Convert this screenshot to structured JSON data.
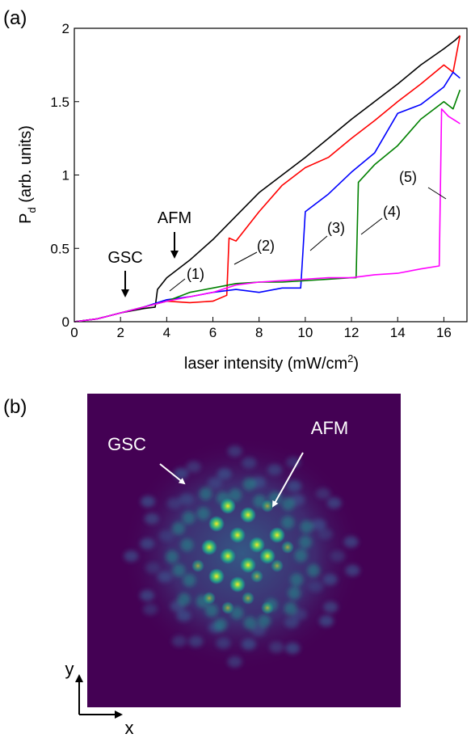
{
  "panel_a": {
    "label": "(a)",
    "annotations": {
      "gsc": "GSC",
      "afm": "AFM",
      "c1": "(1)",
      "c2": "(2)",
      "c3": "(3)",
      "c4": "(4)",
      "c5": "(5)"
    }
  },
  "panel_b": {
    "label": "(b)",
    "gsc": "GSC",
    "afm": "AFM",
    "axis_x": "x",
    "axis_y": "y",
    "colors": {
      "background": "#440154",
      "spot": "#fde725"
    }
  },
  "chart_data": {
    "type": "line",
    "xlabel": "laser intensity (mW/cm²)",
    "ylabel_main": "P",
    "ylabel_sub": "d",
    "ylabel_rest": " (arb. units)",
    "xlim": [
      0,
      17
    ],
    "ylim": [
      0,
      2
    ],
    "xticks": [
      0,
      2,
      4,
      6,
      8,
      10,
      12,
      14,
      16
    ],
    "yticks": [
      0,
      0.5,
      1,
      1.5,
      2
    ],
    "ytick_labels": [
      "0",
      "0.5",
      "1",
      "1.5",
      "2"
    ],
    "grid": false,
    "series": [
      {
        "color": "#000000",
        "points": [
          [
            0,
            0
          ],
          [
            1,
            0.02
          ],
          [
            2,
            0.06
          ],
          [
            3,
            0.09
          ],
          [
            3.5,
            0.1
          ],
          [
            3.6,
            0.22
          ],
          [
            4,
            0.3
          ],
          [
            5,
            0.42
          ],
          [
            6,
            0.56
          ],
          [
            7,
            0.72
          ],
          [
            8,
            0.88
          ],
          [
            9,
            1.0
          ],
          [
            10,
            1.12
          ],
          [
            11,
            1.25
          ],
          [
            12,
            1.38
          ],
          [
            13,
            1.5
          ],
          [
            14,
            1.62
          ],
          [
            15,
            1.75
          ],
          [
            16,
            1.86
          ],
          [
            16.5,
            1.92
          ],
          [
            16.7,
            1.95
          ]
        ]
      },
      {
        "color": "#ff0000",
        "points": [
          [
            0,
            0
          ],
          [
            1,
            0.02
          ],
          [
            2,
            0.06
          ],
          [
            3,
            0.1
          ],
          [
            4,
            0.14
          ],
          [
            5,
            0.13
          ],
          [
            6,
            0.14
          ],
          [
            6.6,
            0.18
          ],
          [
            6.7,
            0.57
          ],
          [
            7,
            0.55
          ],
          [
            8,
            0.75
          ],
          [
            9,
            0.93
          ],
          [
            10,
            1.05
          ],
          [
            11,
            1.12
          ],
          [
            12,
            1.25
          ],
          [
            13,
            1.37
          ],
          [
            14,
            1.5
          ],
          [
            15,
            1.62
          ],
          [
            16,
            1.75
          ],
          [
            16.4,
            1.7
          ],
          [
            16.7,
            1.95
          ]
        ]
      },
      {
        "color": "#0000ff",
        "points": [
          [
            0,
            0
          ],
          [
            1,
            0.02
          ],
          [
            2,
            0.06
          ],
          [
            3,
            0.1
          ],
          [
            4,
            0.15
          ],
          [
            5,
            0.17
          ],
          [
            6,
            0.2
          ],
          [
            7,
            0.22
          ],
          [
            8,
            0.2
          ],
          [
            9,
            0.23
          ],
          [
            9.8,
            0.23
          ],
          [
            9.9,
            0.48
          ],
          [
            10,
            0.75
          ],
          [
            11,
            0.87
          ],
          [
            12,
            1.02
          ],
          [
            13,
            1.15
          ],
          [
            14,
            1.42
          ],
          [
            15,
            1.48
          ],
          [
            16,
            1.6
          ],
          [
            16.4,
            1.7
          ],
          [
            16.7,
            1.66
          ]
        ]
      },
      {
        "color": "#008000",
        "points": [
          [
            0,
            0
          ],
          [
            1,
            0.02
          ],
          [
            2,
            0.06
          ],
          [
            3,
            0.1
          ],
          [
            4,
            0.14
          ],
          [
            5,
            0.2
          ],
          [
            6,
            0.23
          ],
          [
            7,
            0.26
          ],
          [
            8,
            0.27
          ],
          [
            9,
            0.27
          ],
          [
            10,
            0.28
          ],
          [
            11,
            0.29
          ],
          [
            12,
            0.3
          ],
          [
            12.2,
            0.3
          ],
          [
            12.3,
            0.95
          ],
          [
            13,
            1.07
          ],
          [
            14,
            1.2
          ],
          [
            15,
            1.38
          ],
          [
            16,
            1.5
          ],
          [
            16.4,
            1.45
          ],
          [
            16.7,
            1.58
          ]
        ]
      },
      {
        "color": "#ff00ff",
        "points": [
          [
            0,
            0
          ],
          [
            1,
            0.02
          ],
          [
            2,
            0.06
          ],
          [
            3,
            0.1
          ],
          [
            4,
            0.14
          ],
          [
            5,
            0.17
          ],
          [
            6,
            0.2
          ],
          [
            7,
            0.25
          ],
          [
            8,
            0.27
          ],
          [
            9,
            0.28
          ],
          [
            10,
            0.29
          ],
          [
            11,
            0.3
          ],
          [
            12,
            0.3
          ],
          [
            13,
            0.32
          ],
          [
            14,
            0.33
          ],
          [
            15,
            0.36
          ],
          [
            15.8,
            0.38
          ],
          [
            15.9,
            1.45
          ],
          [
            16.2,
            1.4
          ],
          [
            16.5,
            1.37
          ],
          [
            16.7,
            1.35
          ]
        ]
      }
    ]
  }
}
